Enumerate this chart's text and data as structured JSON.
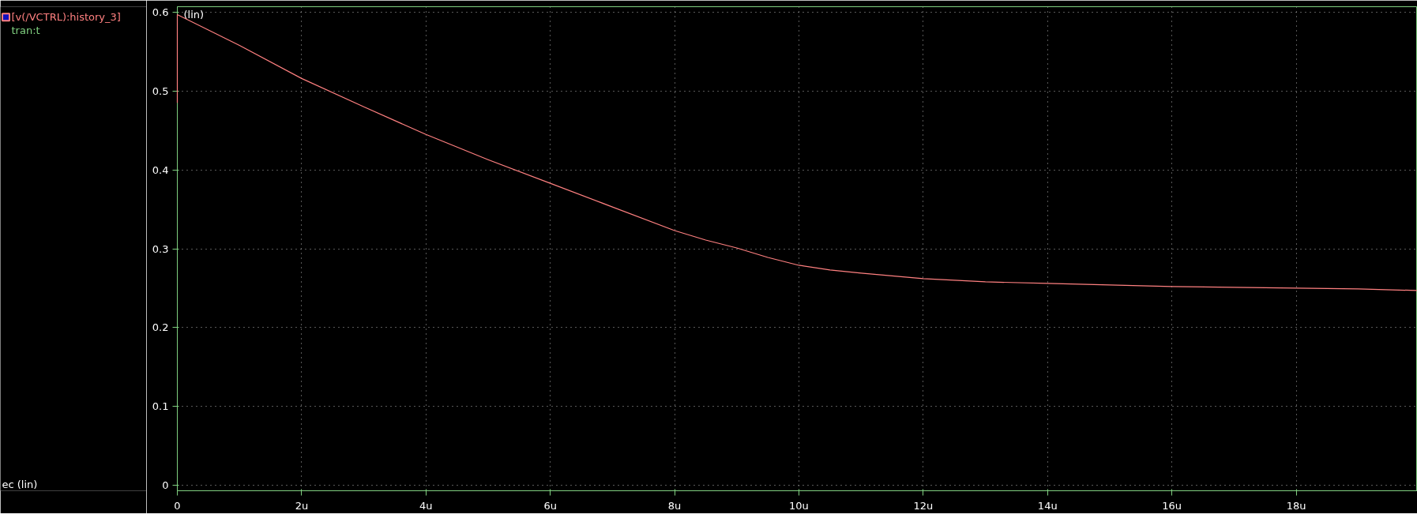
{
  "chart_data": {
    "type": "line",
    "ylabel": "(lin)",
    "annotations": [
      "tran:t",
      "ec (lin)"
    ],
    "x": [
      0,
      0,
      1,
      2,
      3,
      4,
      5,
      6,
      7,
      8,
      8.5,
      9,
      9.5,
      10,
      10.5,
      11,
      12,
      13,
      14,
      15,
      16,
      17,
      18,
      19,
      19.95
    ],
    "series": [
      {
        "name": "[v(/VCTRL):history_3]",
        "color": "#ff8080",
        "values": [
          0.485,
          0.597,
          0.558,
          0.516,
          0.48,
          0.445,
          0.413,
          0.383,
          0.353,
          0.323,
          0.311,
          0.301,
          0.289,
          0.279,
          0.273,
          0.269,
          0.262,
          0.258,
          0.256,
          0.254,
          0.252,
          0.251,
          0.25,
          0.249,
          0.247
        ]
      }
    ],
    "xlim": [
      0,
      19.95
    ],
    "ylim": [
      -0.007,
      0.607
    ],
    "xticks": [
      0,
      {
        "value": 2,
        "label": "2u"
      },
      {
        "value": 4,
        "label": "4u"
      },
      {
        "value": 6,
        "label": "6u"
      },
      {
        "value": 8,
        "label": "8u"
      },
      {
        "value": 10,
        "label": "10u"
      },
      {
        "value": 12,
        "label": "12u"
      },
      {
        "value": 14,
        "label": "14u"
      },
      {
        "value": 16,
        "label": "16u"
      },
      {
        "value": 18,
        "label": "18u"
      }
    ],
    "yticks": [
      0,
      0.1,
      0.2,
      0.3,
      0.4,
      0.5,
      0.6
    ],
    "grid": true,
    "legend": "top left",
    "marker": "none",
    "line_style": "solid"
  }
}
